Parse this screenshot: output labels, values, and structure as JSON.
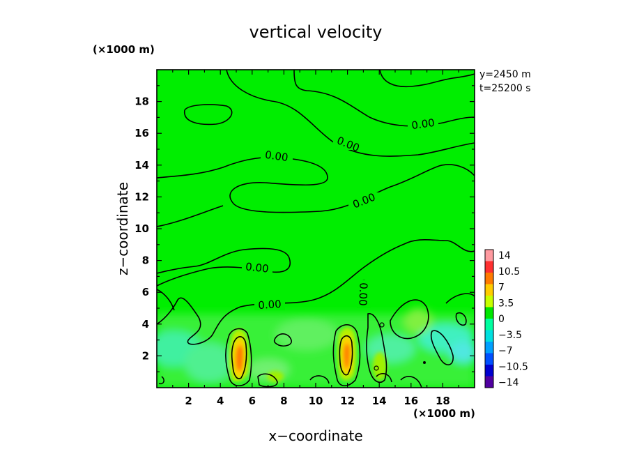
{
  "chart_data": {
    "type": "heatmap",
    "title": "vertical velocity",
    "xlabel": "x−coordinate",
    "ylabel": "z−coordinate",
    "x_unit": "(×1000 m)",
    "z_unit": "(×1000 m)",
    "info": [
      "y=2450 m",
      "t=25200 s"
    ],
    "xlim": [
      0,
      20
    ],
    "ylim": [
      0,
      20
    ],
    "x_ticks": [
      "2",
      "4",
      "6",
      "8",
      "10",
      "12",
      "14",
      "16",
      "18"
    ],
    "y_ticks": [
      "2",
      "4",
      "6",
      "8",
      "10",
      "12",
      "14",
      "16",
      "18"
    ],
    "colorbar": {
      "labels": [
        "14",
        "10.5",
        "7",
        "3.5",
        "0",
        "−3.5",
        "−7",
        "−10.5",
        "−14"
      ],
      "colors": [
        "#ff9aa0",
        "#ff3030",
        "#ff7a00",
        "#ffcc00",
        "#c8ff00",
        "#00e600",
        "#00ffa0",
        "#00e0e0",
        "#00a0ff",
        "#0050ff",
        "#0000d0",
        "#5000a0"
      ]
    },
    "contour_labels": [
      "0.00",
      "0.00",
      "0.00",
      "0.00",
      "0.00",
      "0.00",
      "0.00"
    ],
    "background_color": "#00ee00"
  }
}
